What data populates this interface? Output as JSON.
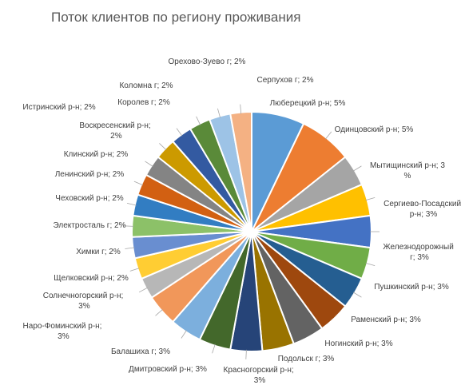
{
  "chart_data": {
    "type": "pie",
    "title": "Поток клиентов по региону проживания",
    "slices": [
      {
        "label": "Люберецкий р-н; 5%",
        "value": 5,
        "color": "#5b9bd5"
      },
      {
        "label": "Одинцовский р-н; 5%",
        "value": 5,
        "color": "#ed7d31"
      },
      {
        "label": "Мытищинский р-н; 3%",
        "value": 3,
        "color": "#a5a5a5"
      },
      {
        "label": "Сергиево-Посадский р-н; 3%",
        "value": 3,
        "color": "#ffc000"
      },
      {
        "label": "Железнодорожный г; 3%",
        "value": 3,
        "color": "#4472c4"
      },
      {
        "label": "Пушкинский р-н; 3%",
        "value": 3,
        "color": "#70ad47"
      },
      {
        "label": "Раменский р-н; 3%",
        "value": 3,
        "color": "#255e91"
      },
      {
        "label": "Ногинский р-н; 3%",
        "value": 3,
        "color": "#9e480e"
      },
      {
        "label": "Подольск г; 3%",
        "value": 3,
        "color": "#636363"
      },
      {
        "label": "Красногорский р-н; 3%",
        "value": 3,
        "color": "#997300"
      },
      {
        "label": "Дмитровский р-н; 3%",
        "value": 3,
        "color": "#264478"
      },
      {
        "label": "Балашиха г; 3%",
        "value": 3,
        "color": "#43682b"
      },
      {
        "label": "Наро-Фоминский р-н; 3%",
        "value": 3,
        "color": "#7cafdd"
      },
      {
        "label": "Солнечногорский р-н; 3%",
        "value": 3,
        "color": "#f1975a"
      },
      {
        "label": "Щелковский р-н; 2%",
        "value": 2,
        "color": "#b7b7b7"
      },
      {
        "label": "Химки г; 2%",
        "value": 2,
        "color": "#ffcd33"
      },
      {
        "label": "Электросталь г; 2%",
        "value": 2,
        "color": "#698ed0"
      },
      {
        "label": "Чеховский р-н; 2%",
        "value": 2,
        "color": "#8cc168"
      },
      {
        "label": "Ленинский р-н; 2%",
        "value": 2,
        "color": "#327dc2"
      },
      {
        "label": "Клинский р-н; 2%",
        "value": 2,
        "color": "#d26012"
      },
      {
        "label": "Воскресенский р-н; 2%",
        "value": 2,
        "color": "#848484"
      },
      {
        "label": "Истринский р-н; 2%",
        "value": 2,
        "color": "#cc9a00"
      },
      {
        "label": "Королев г; 2%",
        "value": 2,
        "color": "#335aa1"
      },
      {
        "label": "Коломна г; 2%",
        "value": 2,
        "color": "#5a8a39"
      },
      {
        "label": "Орехово-Зуево г; 2%",
        "value": 2,
        "color": "#9dc3e6"
      },
      {
        "label": "Серпухов г; 2%",
        "value": 2,
        "color": "#f4b183"
      }
    ]
  }
}
